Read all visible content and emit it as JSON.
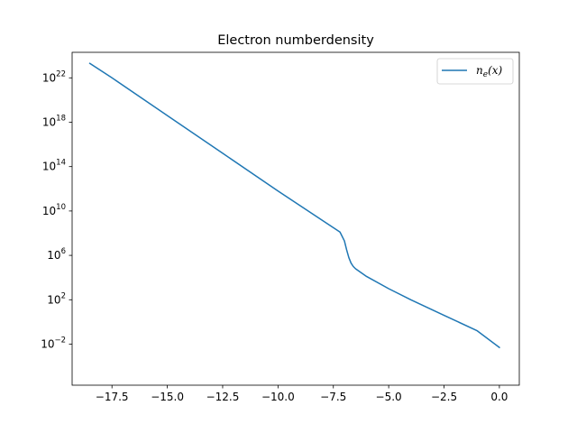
{
  "chart_data": {
    "type": "line",
    "title": "Electron numberdensity",
    "xlabel": "",
    "ylabel": "",
    "xlim": [
      -19.3,
      0.9
    ],
    "ylim": [
      -5.7,
      24.3
    ],
    "yscale": "log",
    "grid": false,
    "legend_position": "top-right",
    "x_ticks": [
      -17.5,
      -15.0,
      -12.5,
      -10.0,
      -7.5,
      -5.0,
      -2.5,
      0.0
    ],
    "x_tick_labels": [
      "−17.5",
      "−15.0",
      "−12.5",
      "−10.0",
      "−7.5",
      "−5.0",
      "−2.5",
      "0.0"
    ],
    "y_tick_exponents": [
      -2,
      2,
      6,
      10,
      14,
      18,
      22
    ],
    "y_tick_labels": [
      {
        "base": "10",
        "exp": "−2"
      },
      {
        "base": "10",
        "exp": "2"
      },
      {
        "base": "10",
        "exp": "6"
      },
      {
        "base": "10",
        "exp": "10"
      },
      {
        "base": "10",
        "exp": "14"
      },
      {
        "base": "10",
        "exp": "18"
      },
      {
        "base": "10",
        "exp": "22"
      }
    ],
    "series": [
      {
        "name": "n_e(x)",
        "color": "#1f77b4",
        "x": [
          -18.5,
          -17.5,
          -15.0,
          -12.5,
          -10.0,
          -7.5,
          -7.2,
          -7.0,
          -6.9,
          -6.8,
          -6.7,
          -6.6,
          -6.5,
          -6.0,
          -5.0,
          -4.0,
          -2.5,
          -1.0,
          0.0
        ],
        "log10_y": [
          23.3,
          22.0,
          18.6,
          15.2,
          11.8,
          8.5,
          8.1,
          7.3,
          6.5,
          5.8,
          5.3,
          5.0,
          4.8,
          4.1,
          3.0,
          2.0,
          0.6,
          -0.8,
          -2.3
        ]
      }
    ],
    "legend": [
      {
        "label_main": "n",
        "label_sub": "e",
        "label_rest": "(x)"
      }
    ]
  }
}
